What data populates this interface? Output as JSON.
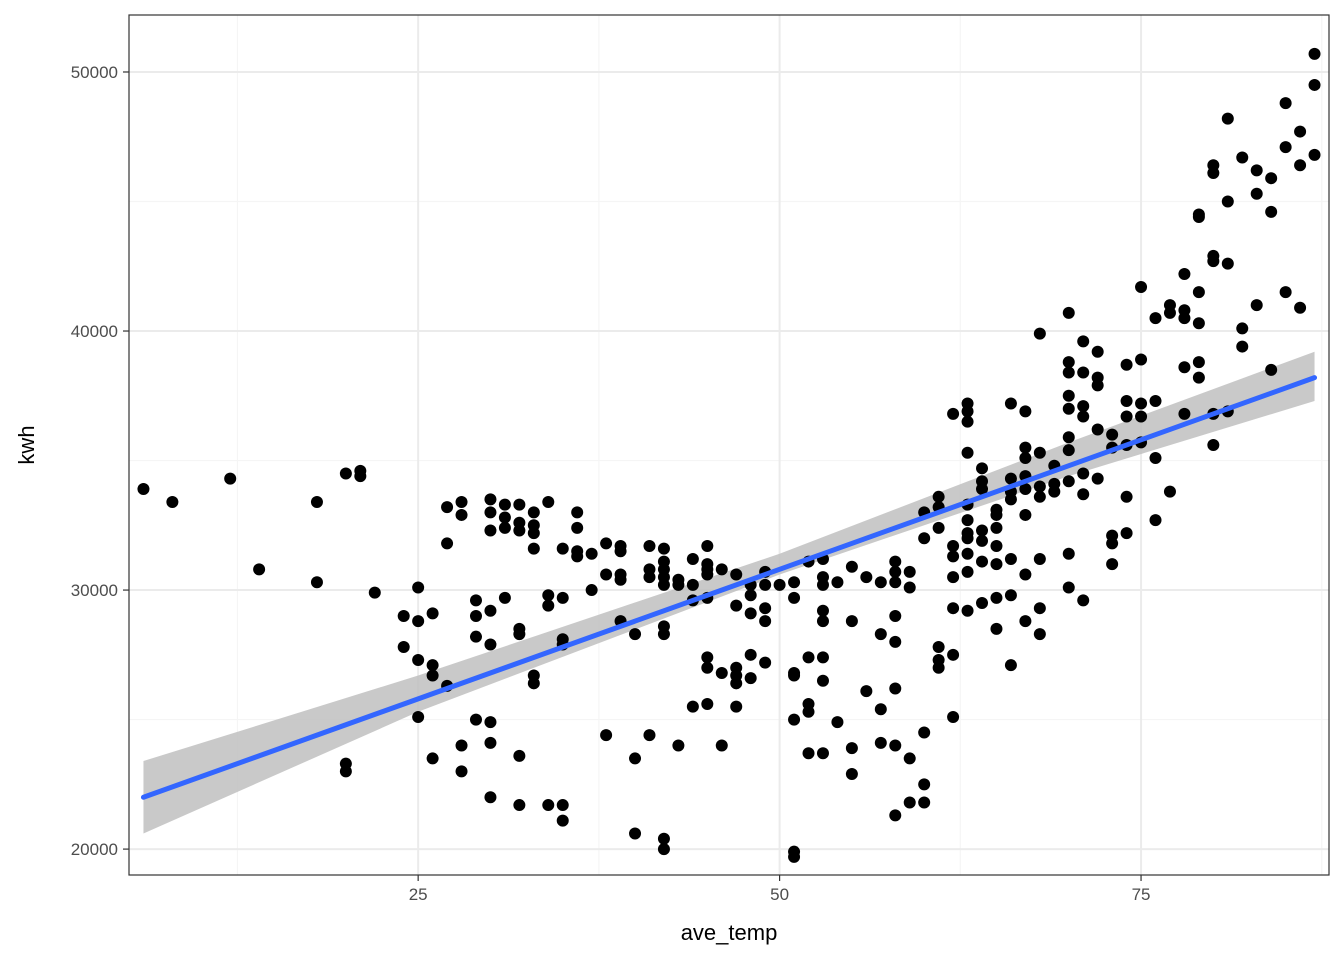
{
  "chart_data": {
    "type": "scatter",
    "xlabel": "ave_temp",
    "ylabel": "kwh",
    "xlim": [
      5,
      88
    ],
    "ylim": [
      19000,
      52200
    ],
    "x_ticks": [
      25,
      50,
      75
    ],
    "x_tick_labels": [
      "25",
      "50",
      "75"
    ],
    "y_ticks": [
      20000,
      30000,
      40000,
      50000
    ],
    "y_tick_labels": [
      "20000",
      "30000",
      "40000",
      "50000"
    ],
    "grid": true,
    "theme": "bw",
    "colors": {
      "points": "#000000",
      "fit_line": "#3366ff",
      "confidence_band": "#bfbfbf",
      "grid_major": "#ebebeb",
      "grid_minor": "#f5f5f5",
      "panel_border": "#333333"
    },
    "smooth": {
      "method": "lm",
      "line": {
        "x": [
          6,
          87
        ],
        "y": [
          22000,
          38200
        ]
      },
      "band_upper": {
        "x": [
          6,
          25,
          50,
          70,
          87
        ],
        "y": [
          23400,
          26700,
          31400,
          35700,
          39200
        ]
      },
      "band_lower": {
        "x": [
          6,
          25,
          50,
          70,
          87
        ],
        "y": [
          20600,
          25300,
          30600,
          34400,
          37300
        ]
      }
    },
    "points": [
      [
        6,
        33900
      ],
      [
        8,
        33400
      ],
      [
        12,
        34300
      ],
      [
        14,
        30800
      ],
      [
        18,
        33400
      ],
      [
        18,
        30300
      ],
      [
        20,
        34500
      ],
      [
        20,
        23300
      ],
      [
        20,
        23000
      ],
      [
        21,
        34600
      ],
      [
        21,
        34400
      ],
      [
        22,
        29900
      ],
      [
        24,
        29000
      ],
      [
        24,
        27800
      ],
      [
        25,
        30100
      ],
      [
        25,
        28800
      ],
      [
        25,
        27300
      ],
      [
        25,
        25100
      ],
      [
        26,
        29100
      ],
      [
        26,
        27100
      ],
      [
        26,
        26700
      ],
      [
        26,
        23500
      ],
      [
        27,
        33200
      ],
      [
        27,
        31800
      ],
      [
        27,
        26300
      ],
      [
        28,
        33400
      ],
      [
        28,
        32900
      ],
      [
        28,
        24000
      ],
      [
        28,
        23000
      ],
      [
        29,
        29600
      ],
      [
        29,
        29000
      ],
      [
        29,
        28200
      ],
      [
        29,
        25000
      ],
      [
        30,
        33500
      ],
      [
        30,
        33000
      ],
      [
        30,
        32300
      ],
      [
        30,
        29200
      ],
      [
        30,
        27900
      ],
      [
        30,
        24900
      ],
      [
        30,
        24100
      ],
      [
        30,
        22000
      ],
      [
        31,
        33300
      ],
      [
        31,
        32800
      ],
      [
        31,
        32400
      ],
      [
        31,
        29700
      ],
      [
        32,
        33300
      ],
      [
        32,
        32600
      ],
      [
        32,
        32300
      ],
      [
        32,
        28500
      ],
      [
        32,
        28300
      ],
      [
        32,
        23600
      ],
      [
        32,
        21700
      ],
      [
        33,
        33000
      ],
      [
        33,
        32500
      ],
      [
        33,
        32200
      ],
      [
        33,
        31600
      ],
      [
        33,
        26700
      ],
      [
        33,
        26400
      ],
      [
        34,
        33400
      ],
      [
        34,
        29800
      ],
      [
        34,
        29400
      ],
      [
        34,
        21700
      ],
      [
        35,
        31600
      ],
      [
        35,
        29700
      ],
      [
        35,
        28100
      ],
      [
        35,
        27900
      ],
      [
        35,
        21700
      ],
      [
        35,
        21100
      ],
      [
        36,
        33000
      ],
      [
        36,
        32400
      ],
      [
        36,
        31500
      ],
      [
        36,
        31300
      ],
      [
        37,
        31400
      ],
      [
        37,
        30000
      ],
      [
        38,
        31800
      ],
      [
        38,
        30600
      ],
      [
        38,
        24400
      ],
      [
        39,
        31700
      ],
      [
        39,
        31500
      ],
      [
        39,
        30600
      ],
      [
        39,
        30400
      ],
      [
        39,
        28800
      ],
      [
        40,
        28300
      ],
      [
        40,
        23500
      ],
      [
        40,
        20600
      ],
      [
        41,
        31700
      ],
      [
        41,
        30800
      ],
      [
        41,
        30500
      ],
      [
        41,
        24400
      ],
      [
        42,
        31600
      ],
      [
        42,
        31100
      ],
      [
        42,
        30800
      ],
      [
        42,
        30500
      ],
      [
        42,
        30200
      ],
      [
        42,
        28600
      ],
      [
        42,
        28300
      ],
      [
        42,
        20400
      ],
      [
        42,
        20000
      ],
      [
        43,
        30400
      ],
      [
        43,
        30200
      ],
      [
        43,
        24000
      ],
      [
        44,
        31200
      ],
      [
        44,
        30200
      ],
      [
        44,
        29600
      ],
      [
        44,
        25500
      ],
      [
        45,
        31700
      ],
      [
        45,
        31000
      ],
      [
        45,
        30800
      ],
      [
        45,
        30600
      ],
      [
        45,
        29700
      ],
      [
        45,
        27400
      ],
      [
        45,
        27000
      ],
      [
        45,
        25600
      ],
      [
        46,
        30800
      ],
      [
        46,
        26800
      ],
      [
        46,
        24000
      ],
      [
        47,
        30600
      ],
      [
        47,
        29400
      ],
      [
        47,
        27000
      ],
      [
        47,
        26700
      ],
      [
        47,
        26400
      ],
      [
        47,
        25500
      ],
      [
        48,
        30200
      ],
      [
        48,
        29800
      ],
      [
        48,
        29100
      ],
      [
        48,
        27500
      ],
      [
        48,
        26600
      ],
      [
        49,
        30700
      ],
      [
        49,
        30200
      ],
      [
        49,
        29300
      ],
      [
        49,
        28800
      ],
      [
        49,
        27200
      ],
      [
        50,
        30200
      ],
      [
        51,
        30300
      ],
      [
        51,
        29700
      ],
      [
        51,
        26800
      ],
      [
        51,
        26700
      ],
      [
        51,
        25000
      ],
      [
        51,
        19900
      ],
      [
        51,
        19700
      ],
      [
        52,
        31100
      ],
      [
        52,
        27400
      ],
      [
        52,
        25600
      ],
      [
        52,
        25300
      ],
      [
        52,
        23700
      ],
      [
        53,
        31200
      ],
      [
        53,
        30500
      ],
      [
        53,
        30200
      ],
      [
        53,
        29200
      ],
      [
        53,
        28800
      ],
      [
        53,
        27400
      ],
      [
        53,
        26500
      ],
      [
        53,
        23700
      ],
      [
        54,
        30300
      ],
      [
        54,
        24900
      ],
      [
        55,
        30900
      ],
      [
        55,
        28800
      ],
      [
        55,
        23900
      ],
      [
        55,
        22900
      ],
      [
        56,
        30500
      ],
      [
        56,
        26100
      ],
      [
        57,
        30300
      ],
      [
        57,
        28300
      ],
      [
        57,
        25400
      ],
      [
        57,
        24100
      ],
      [
        58,
        31100
      ],
      [
        58,
        30700
      ],
      [
        58,
        30300
      ],
      [
        58,
        29000
      ],
      [
        58,
        28000
      ],
      [
        58,
        26200
      ],
      [
        58,
        24000
      ],
      [
        58,
        21300
      ],
      [
        59,
        30700
      ],
      [
        59,
        30100
      ],
      [
        59,
        23500
      ],
      [
        59,
        21800
      ],
      [
        60,
        33000
      ],
      [
        60,
        32000
      ],
      [
        60,
        24500
      ],
      [
        60,
        22500
      ],
      [
        60,
        21800
      ],
      [
        61,
        33600
      ],
      [
        61,
        33200
      ],
      [
        61,
        32400
      ],
      [
        61,
        27800
      ],
      [
        61,
        27300
      ],
      [
        61,
        27000
      ],
      [
        62,
        36800
      ],
      [
        62,
        31700
      ],
      [
        62,
        31300
      ],
      [
        62,
        30500
      ],
      [
        62,
        29300
      ],
      [
        62,
        27500
      ],
      [
        62,
        25100
      ],
      [
        63,
        37200
      ],
      [
        63,
        36900
      ],
      [
        63,
        36500
      ],
      [
        63,
        35300
      ],
      [
        63,
        33300
      ],
      [
        63,
        32700
      ],
      [
        63,
        32200
      ],
      [
        63,
        32000
      ],
      [
        63,
        31400
      ],
      [
        63,
        30700
      ],
      [
        63,
        29200
      ],
      [
        64,
        34700
      ],
      [
        64,
        34200
      ],
      [
        64,
        33900
      ],
      [
        64,
        32300
      ],
      [
        64,
        31900
      ],
      [
        64,
        31100
      ],
      [
        64,
        29500
      ],
      [
        65,
        33100
      ],
      [
        65,
        32900
      ],
      [
        65,
        32400
      ],
      [
        65,
        31700
      ],
      [
        65,
        31000
      ],
      [
        65,
        29700
      ],
      [
        65,
        28500
      ],
      [
        66,
        37200
      ],
      [
        66,
        34300
      ],
      [
        66,
        33800
      ],
      [
        66,
        33500
      ],
      [
        66,
        31200
      ],
      [
        66,
        29800
      ],
      [
        66,
        27100
      ],
      [
        67,
        36900
      ],
      [
        67,
        35500
      ],
      [
        67,
        35100
      ],
      [
        67,
        34400
      ],
      [
        67,
        33900
      ],
      [
        67,
        32900
      ],
      [
        67,
        30600
      ],
      [
        67,
        28800
      ],
      [
        68,
        39900
      ],
      [
        68,
        35300
      ],
      [
        68,
        34000
      ],
      [
        68,
        33600
      ],
      [
        68,
        31200
      ],
      [
        68,
        29300
      ],
      [
        68,
        28300
      ],
      [
        69,
        34800
      ],
      [
        69,
        34100
      ],
      [
        69,
        33800
      ],
      [
        70,
        40700
      ],
      [
        70,
        38800
      ],
      [
        70,
        38400
      ],
      [
        70,
        37500
      ],
      [
        70,
        37000
      ],
      [
        70,
        35900
      ],
      [
        70,
        35400
      ],
      [
        70,
        34200
      ],
      [
        70,
        31400
      ],
      [
        70,
        30100
      ],
      [
        71,
        39600
      ],
      [
        71,
        38400
      ],
      [
        71,
        37100
      ],
      [
        71,
        36700
      ],
      [
        71,
        34500
      ],
      [
        71,
        33700
      ],
      [
        71,
        29600
      ],
      [
        72,
        39200
      ],
      [
        72,
        38200
      ],
      [
        72,
        37900
      ],
      [
        72,
        36200
      ],
      [
        72,
        34300
      ],
      [
        73,
        36000
      ],
      [
        73,
        35500
      ],
      [
        73,
        32100
      ],
      [
        73,
        31800
      ],
      [
        73,
        31000
      ],
      [
        74,
        38700
      ],
      [
        74,
        37300
      ],
      [
        74,
        36700
      ],
      [
        74,
        35600
      ],
      [
        74,
        33600
      ],
      [
        74,
        32200
      ],
      [
        75,
        41700
      ],
      [
        75,
        38900
      ],
      [
        75,
        37200
      ],
      [
        75,
        36700
      ],
      [
        75,
        35700
      ],
      [
        76,
        40500
      ],
      [
        76,
        37300
      ],
      [
        76,
        35100
      ],
      [
        76,
        32700
      ],
      [
        77,
        41000
      ],
      [
        77,
        40700
      ],
      [
        77,
        33800
      ],
      [
        78,
        42200
      ],
      [
        78,
        40800
      ],
      [
        78,
        40500
      ],
      [
        78,
        38600
      ],
      [
        78,
        36800
      ],
      [
        79,
        44500
      ],
      [
        79,
        44400
      ],
      [
        79,
        41500
      ],
      [
        79,
        40300
      ],
      [
        79,
        38800
      ],
      [
        79,
        38200
      ],
      [
        80,
        46400
      ],
      [
        80,
        46100
      ],
      [
        80,
        42900
      ],
      [
        80,
        42700
      ],
      [
        80,
        36800
      ],
      [
        80,
        35600
      ],
      [
        81,
        48200
      ],
      [
        81,
        45000
      ],
      [
        81,
        42600
      ],
      [
        81,
        36900
      ],
      [
        82,
        46700
      ],
      [
        82,
        40100
      ],
      [
        82,
        39400
      ],
      [
        83,
        46200
      ],
      [
        83,
        45300
      ],
      [
        83,
        41000
      ],
      [
        84,
        45900
      ],
      [
        84,
        44600
      ],
      [
        84,
        38500
      ],
      [
        85,
        48800
      ],
      [
        85,
        47100
      ],
      [
        85,
        41500
      ],
      [
        86,
        47700
      ],
      [
        86,
        46400
      ],
      [
        86,
        40900
      ],
      [
        87,
        50700
      ],
      [
        87,
        49500
      ],
      [
        87,
        46800
      ]
    ]
  }
}
